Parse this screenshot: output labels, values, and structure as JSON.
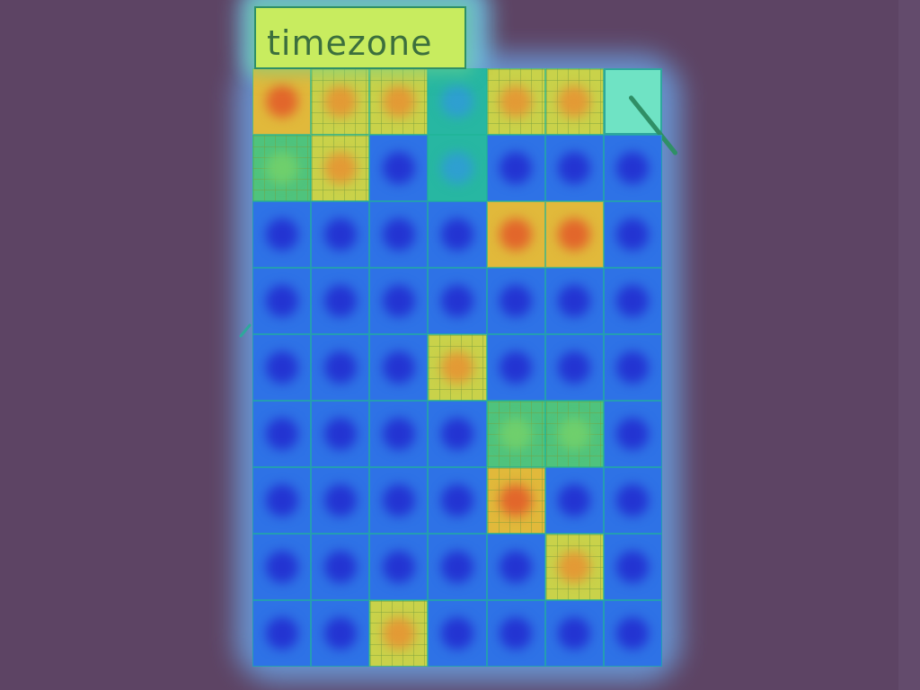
{
  "search": {
    "value": "timezone",
    "placeholder": ""
  },
  "colors": {
    "background": "#5d4464",
    "heat_low": "#2334d2",
    "heat_mid": "#4fc37d",
    "heat_high": "#e2662b"
  },
  "icons": {
    "close": "close-icon"
  },
  "heatmap": {
    "rows": 9,
    "cols": 7,
    "levels": [
      [
        4,
        3,
        3,
        1,
        3,
        3,
        0
      ],
      [
        2,
        3,
        0,
        1,
        0,
        0,
        0
      ],
      [
        0,
        0,
        0,
        0,
        4,
        4,
        0
      ],
      [
        0,
        0,
        0,
        0,
        0,
        0,
        0
      ],
      [
        0,
        0,
        0,
        3,
        0,
        0,
        0
      ],
      [
        0,
        0,
        0,
        0,
        2,
        2,
        0
      ],
      [
        0,
        0,
        0,
        0,
        4,
        0,
        0
      ],
      [
        0,
        0,
        0,
        0,
        0,
        3,
        0
      ],
      [
        0,
        0,
        3,
        0,
        0,
        0,
        0
      ]
    ],
    "hatched": [
      [
        0,
        1
      ],
      [
        0,
        2
      ],
      [
        0,
        4
      ],
      [
        0,
        5
      ],
      [
        1,
        0
      ],
      [
        1,
        1
      ],
      [
        4,
        3
      ],
      [
        5,
        4
      ],
      [
        5,
        5
      ],
      [
        6,
        4
      ],
      [
        7,
        5
      ],
      [
        8,
        2
      ]
    ],
    "close_cell": [
      0,
      6
    ]
  }
}
